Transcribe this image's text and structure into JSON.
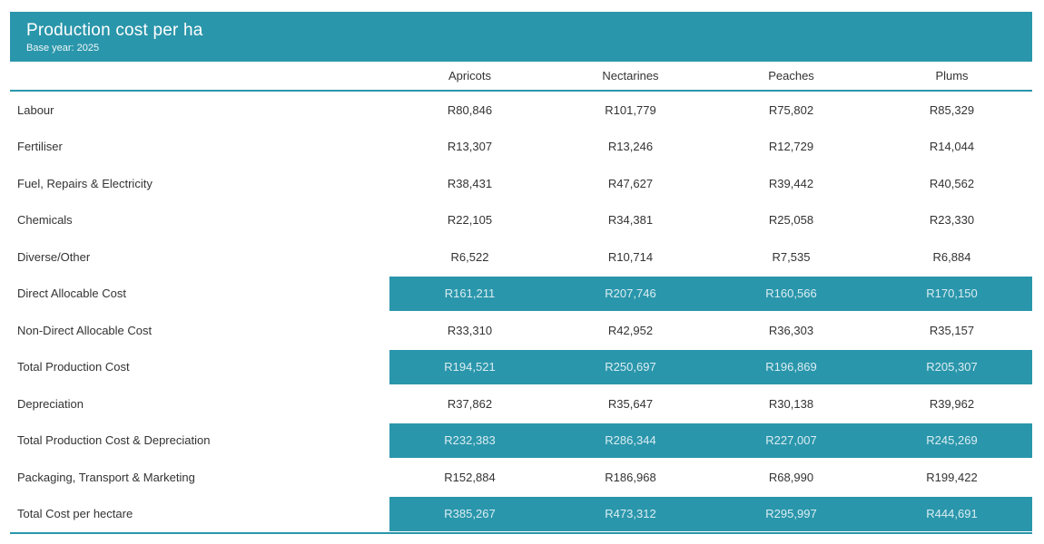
{
  "header": {
    "title": "Production cost per ha",
    "subtitle": "Base year: 2025"
  },
  "colors": {
    "accent_teal": "#2a96ab",
    "highlight_text": "#daedf2",
    "body_text": "#333333",
    "background": "#ffffff"
  },
  "chart_data": {
    "type": "table",
    "title": "Production cost per ha",
    "subtitle": "Base year: 2025",
    "columns": [
      "Apricots",
      "Nectarines",
      "Peaches",
      "Plums"
    ],
    "rows": [
      {
        "label": "Labour",
        "values": [
          "R80,846",
          "R101,779",
          "R75,802",
          "R85,329"
        ],
        "highlight": false
      },
      {
        "label": "Fertiliser",
        "values": [
          "R13,307",
          "R13,246",
          "R12,729",
          "R14,044"
        ],
        "highlight": false
      },
      {
        "label": "Fuel, Repairs & Electricity",
        "values": [
          "R38,431",
          "R47,627",
          "R39,442",
          "R40,562"
        ],
        "highlight": false
      },
      {
        "label": "Chemicals",
        "values": [
          "R22,105",
          "R34,381",
          "R25,058",
          "R23,330"
        ],
        "highlight": false
      },
      {
        "label": "Diverse/Other",
        "values": [
          "R6,522",
          "R10,714",
          "R7,535",
          "R6,884"
        ],
        "highlight": false
      },
      {
        "label": "Direct Allocable Cost",
        "values": [
          "R161,211",
          "R207,746",
          "R160,566",
          "R170,150"
        ],
        "highlight": true
      },
      {
        "label": "Non-Direct Allocable Cost",
        "values": [
          "R33,310",
          "R42,952",
          "R36,303",
          "R35,157"
        ],
        "highlight": false
      },
      {
        "label": "Total Production Cost",
        "values": [
          "R194,521",
          "R250,697",
          "R196,869",
          "R205,307"
        ],
        "highlight": true
      },
      {
        "label": "Depreciation",
        "values": [
          "R37,862",
          "R35,647",
          "R30,138",
          "R39,962"
        ],
        "highlight": false
      },
      {
        "label": "Total Production Cost & Depreciation",
        "values": [
          "R232,383",
          "R286,344",
          "R227,007",
          "R245,269"
        ],
        "highlight": true
      },
      {
        "label": "Packaging, Transport & Marketing",
        "values": [
          "R152,884",
          "R186,968",
          "R68,990",
          "R199,422"
        ],
        "highlight": false
      },
      {
        "label": "Total Cost per hectare",
        "values": [
          "R385,267",
          "R473,312",
          "R295,997",
          "R444,691"
        ],
        "highlight": true
      }
    ]
  }
}
